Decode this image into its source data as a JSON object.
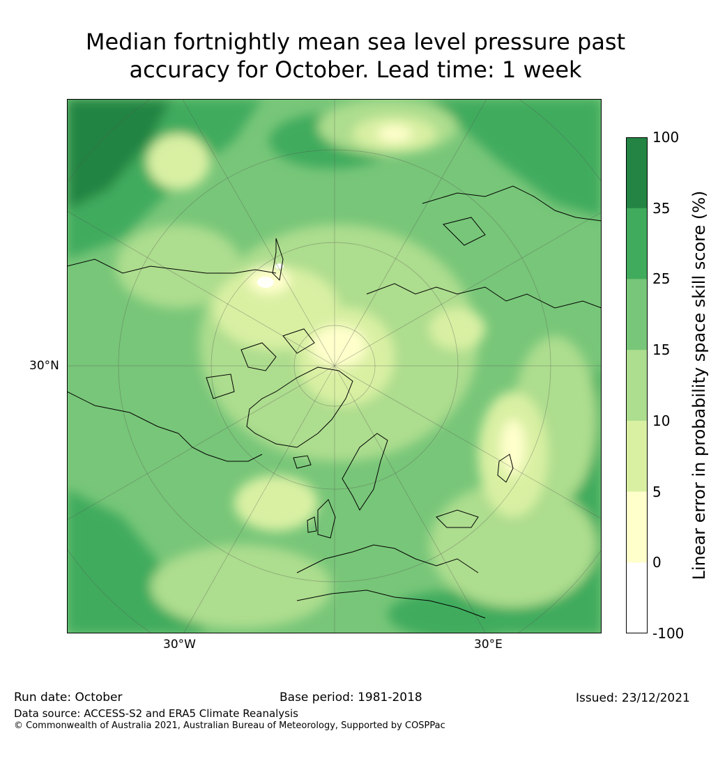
{
  "title_line1": "Median fortnightly mean sea level pressure past",
  "title_line2": "accuracy for October. Lead time: 1 week",
  "map_labels": {
    "lat": "30°N",
    "lon_west": "30°W",
    "lon_east": "30°E"
  },
  "colorbar": {
    "label": "Linear error in probability space skill score (%)",
    "ticks": [
      "100",
      "35",
      "25",
      "15",
      "10",
      "5",
      "0",
      "-100"
    ],
    "bands": [
      {
        "range": "35 to 100",
        "color": "#238443"
      },
      {
        "range": "25 to 35",
        "color": "#41ab5d"
      },
      {
        "range": "15 to 25",
        "color": "#78c679"
      },
      {
        "range": "10 to 15",
        "color": "#addd8e"
      },
      {
        "range": "5 to 10",
        "color": "#d9f0a3"
      },
      {
        "range": "0 to 5",
        "color": "#ffffcc"
      },
      {
        "range": "-100 to 0",
        "color": "#ffffff"
      }
    ]
  },
  "footer": {
    "run_date": "Run date: October",
    "base_period": "Base period: 1981-2018",
    "issued": "Issued: 23/12/2021",
    "data_source": "Data source: ACCESS-S2 and ERA5 Climate Reanalysis",
    "copyright": "© Commonwealth of Australia 2021, Australian Bureau of Meteorology, Supported by COSPPac"
  }
}
